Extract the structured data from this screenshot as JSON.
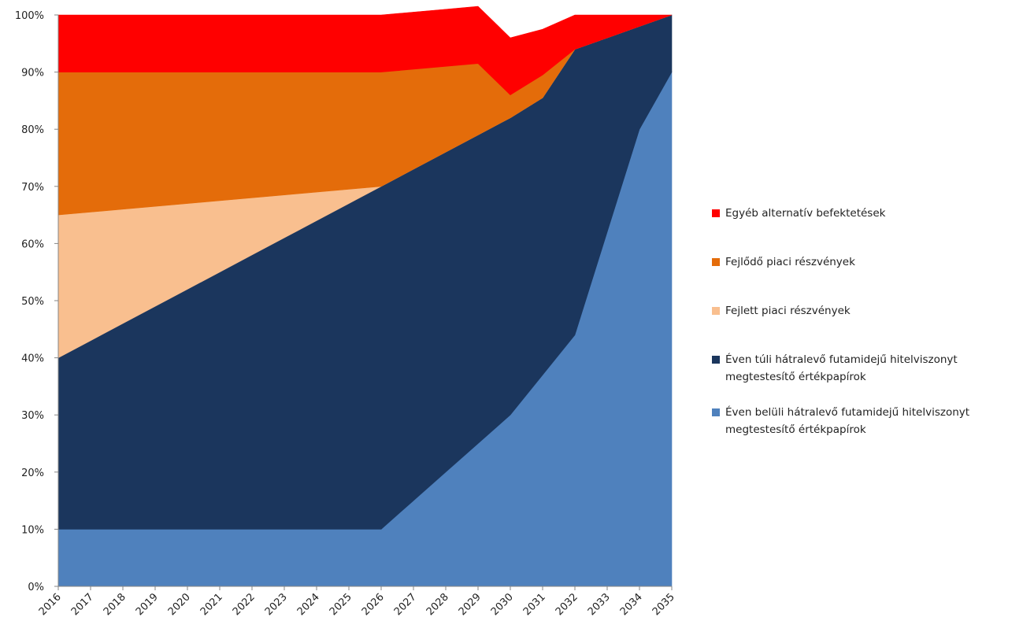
{
  "chart_data": {
    "type": "area",
    "stacked": true,
    "x": [
      "2016",
      "2017",
      "2018",
      "2019",
      "2020",
      "2021",
      "2022",
      "2023",
      "2024",
      "2025",
      "2026",
      "2027",
      "2028",
      "2029",
      "2030",
      "2031",
      "2032",
      "2033",
      "2034",
      "2035"
    ],
    "ylim": [
      0,
      100
    ],
    "yticks": [
      "0%",
      "10%",
      "20%",
      "30%",
      "40%",
      "50%",
      "60%",
      "70%",
      "80%",
      "90%",
      "100%"
    ],
    "series": [
      {
        "name": "Éven belüli hátralevő futamidejű hitelviszonyt megtestesítő értékpapírok",
        "color": "#4f81bd",
        "values": [
          10,
          10,
          10,
          10,
          10,
          10,
          10,
          10,
          10,
          10,
          10,
          15,
          20,
          25,
          30,
          37,
          44,
          62,
          80,
          90
        ]
      },
      {
        "name": "Éven túli hátralevő futamidejű hitelviszonyt megtestesítő értékpapírok",
        "color": "#1b365d",
        "values": [
          30,
          33,
          36,
          39,
          42,
          45,
          48,
          51,
          54,
          57,
          60,
          58,
          56,
          54,
          52,
          48.5,
          50,
          34,
          18,
          10
        ]
      },
      {
        "name": "Fejlett piaci részvények",
        "color": "#f9bf8f",
        "values": [
          25,
          22.5,
          20,
          17.5,
          15,
          12.5,
          10,
          7.5,
          5,
          2.5,
          0,
          0,
          0,
          0,
          0,
          0,
          0,
          0,
          0,
          0
        ],
        "values_note_removed": true
      },
      {
        "name": "Fejlődő piaci részvények",
        "color": "#e46c0a",
        "values": [
          25,
          24.5,
          24,
          23.5,
          23,
          22.5,
          22,
          21.5,
          21,
          20.5,
          20,
          17.5,
          15,
          12.5,
          4,
          4,
          0,
          0,
          0,
          0
        ]
      },
      {
        "name": "Egyéb alternatív befektetések",
        "color": "#ff0000",
        "values": [
          10,
          10,
          10,
          10,
          10,
          10,
          10,
          10,
          10,
          10,
          10,
          10,
          10,
          10,
          10,
          8,
          6,
          4,
          2,
          0
        ]
      }
    ],
    "legend_position": "right",
    "legend_order": [
      "Egyéb alternatív befektetések",
      "Fejlődő piaci részvények",
      "Fejlett piaci részvények",
      "Éven túli hátralevő futamidejű hitelviszonyt megtestesítő értékpapírok",
      "Éven belüli hátralevő futamidejű hitelviszonyt megtestesítő értékpapírok"
    ],
    "grid": false
  },
  "legend": {
    "items": [
      {
        "label": "Egyéb alternatív befektetések",
        "color": "#ff0000"
      },
      {
        "label": "Fejlődő piaci részvények",
        "color": "#e46c0a"
      },
      {
        "label": "Fejlett piaci részvények",
        "color": "#f9bf8f"
      },
      {
        "label": "Éven túli hátralevő futamidejű hitelviszonyt megtestesítő értékpapírok",
        "color": "#1b365d"
      },
      {
        "label": "Éven belüli hátralevő futamidejű hitelviszonyt megtestesítő értékpapírok",
        "color": "#4f81bd"
      }
    ]
  }
}
